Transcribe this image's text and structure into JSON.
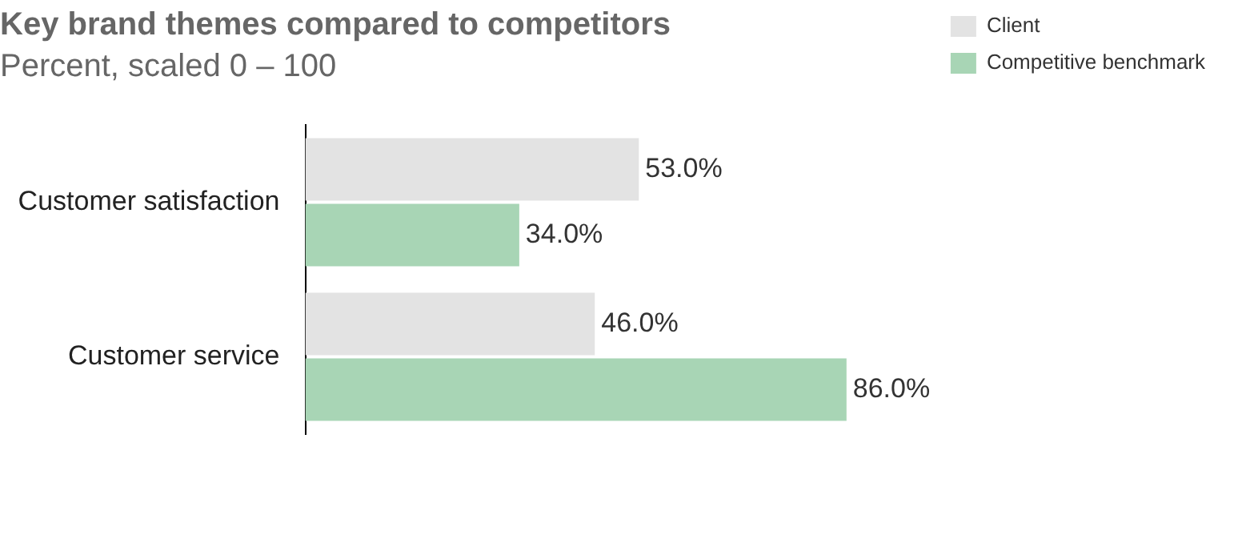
{
  "chart_data": {
    "type": "bar",
    "orientation": "horizontal",
    "title": "Key brand themes compared to competitors",
    "subtitle": "Percent, scaled 0 – 100",
    "categories": [
      "Customer satisfaction",
      "Customer service"
    ],
    "series": [
      {
        "name": "Client",
        "color": "#e3e3e3",
        "values": [
          53,
          46
        ],
        "value_labels": [
          "53.0%",
          "46.0%"
        ]
      },
      {
        "name": "Competitive benchmark",
        "color": "#a8d5b5",
        "values": [
          34,
          86
        ],
        "value_labels": [
          "34.0%",
          "86.0%"
        ]
      }
    ],
    "tick_labels": "y",
    "grid": false,
    "legend": "top right"
  }
}
